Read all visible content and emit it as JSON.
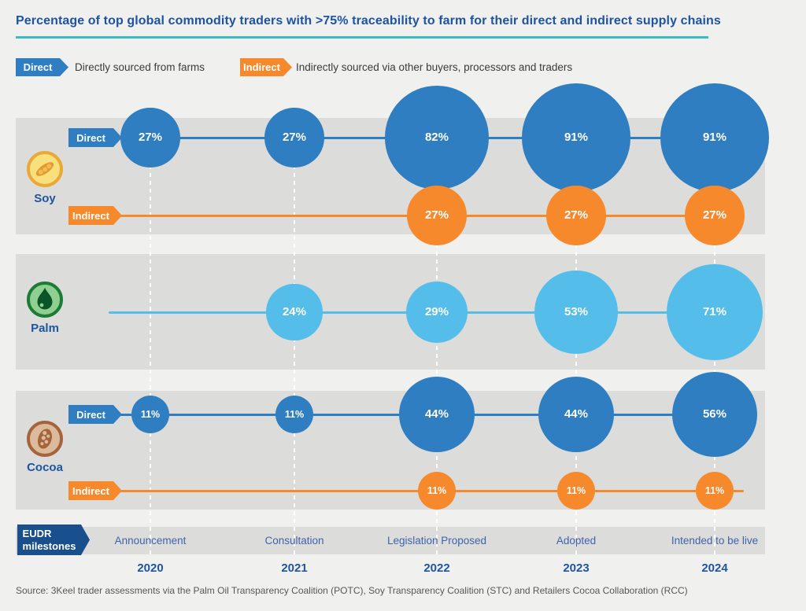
{
  "title": "Percentage of top global commodity traders with >75% traceability to farm for their direct and indirect supply chains",
  "legend": {
    "direct_tag": "Direct",
    "direct_description": "Directly sourced from farms",
    "indirect_tag": "Indirect",
    "indirect_description": "Indirectly sourced via other buyers, processors and traders"
  },
  "colors": {
    "direct_blue": "#2e7ec1",
    "indirect_orange": "#f6892b",
    "palm_light_blue": "#55bde9",
    "accent_teal": "#3bbcc0",
    "eudr_navy": "#1a4f8d",
    "heading_blue": "#1e53a0",
    "band_gray": "#dcdcdb",
    "background": "#f0f0ef"
  },
  "chart_data": {
    "type": "scatter",
    "variant": "bubble-timeline",
    "title": "Percentage of top global commodity traders with >75% traceability to farm for their direct and indirect supply chains",
    "x_labels": [
      "2020",
      "2021",
      "2022",
      "2023",
      "2024"
    ],
    "value_unit": "%",
    "rows": [
      {
        "commodity": "Soy",
        "icon": "soy-icon",
        "series": [
          {
            "name": "Direct",
            "tag": "Direct",
            "color": "#2e7ec1",
            "values": [
              27,
              27,
              82,
              91,
              91
            ]
          },
          {
            "name": "Indirect",
            "tag": "Indirect",
            "color": "#f6892b",
            "values": [
              null,
              null,
              27,
              27,
              27
            ]
          }
        ]
      },
      {
        "commodity": "Palm",
        "icon": "palm-icon",
        "series": [
          {
            "name": "Palm",
            "tag": null,
            "color": "#55bde9",
            "values": [
              null,
              24,
              29,
              53,
              71
            ]
          }
        ]
      },
      {
        "commodity": "Cocoa",
        "icon": "cocoa-icon",
        "series": [
          {
            "name": "Direct",
            "tag": "Direct",
            "color": "#2e7ec1",
            "values": [
              11,
              11,
              44,
              44,
              56
            ]
          },
          {
            "name": "Indirect",
            "tag": "Indirect",
            "color": "#f6892b",
            "values": [
              null,
              null,
              11,
              11,
              11
            ]
          }
        ]
      }
    ],
    "milestones": {
      "tag_line1": "EUDR",
      "tag_line2": "milestones",
      "labels": [
        "Announcement",
        "Consultation",
        "Legislation Proposed",
        "Adopted",
        "Intended to be live"
      ]
    }
  },
  "source": "Source: 3Keel trader assessments via the Palm Oil Transparency Coalition (POTC), Soy Transparency Coalition (STC) and Retailers Cocoa Collaboration (RCC)"
}
